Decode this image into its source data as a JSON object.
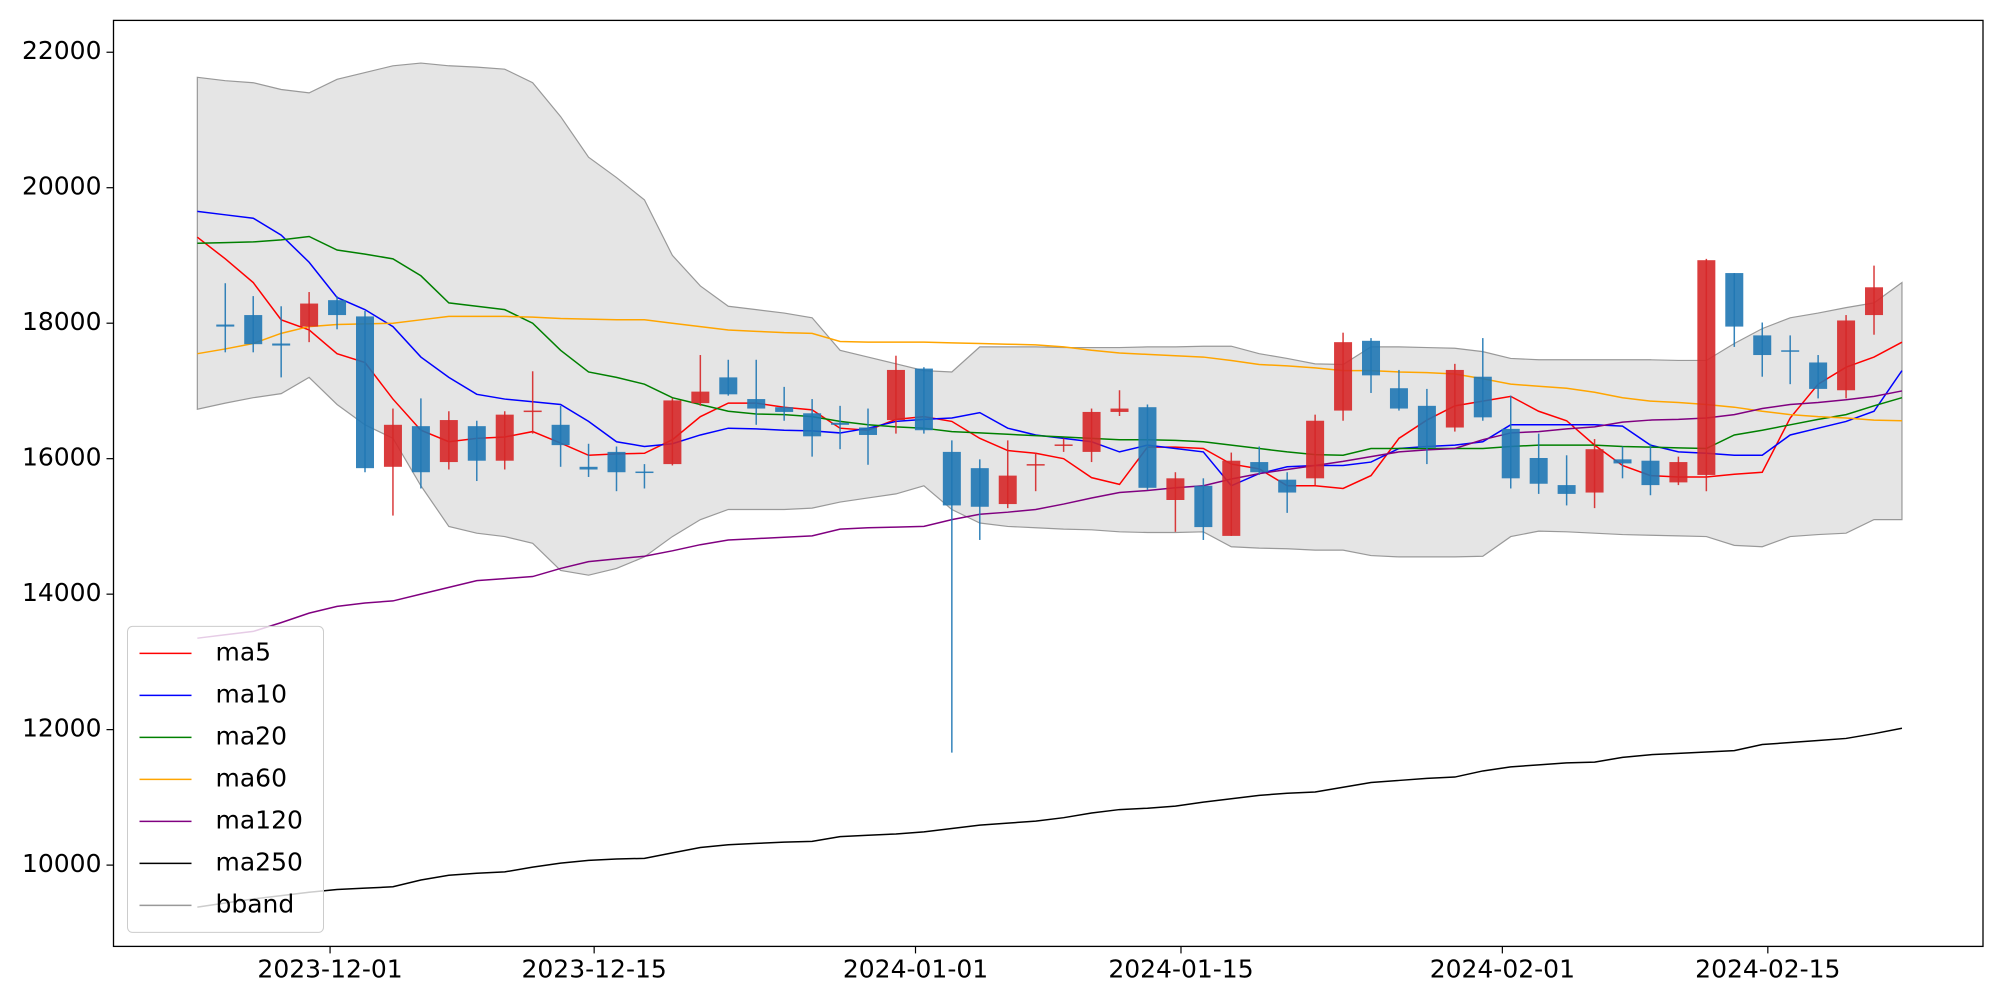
{
  "chart_data": {
    "type": "candlestick",
    "categories": [
      null,
      null,
      null,
      null,
      null,
      null,
      null,
      null,
      null,
      null,
      null,
      null,
      null,
      null,
      null,
      null,
      null,
      null,
      null,
      null,
      null,
      null,
      null,
      null,
      null,
      null,
      null,
      null,
      null,
      null,
      null,
      null,
      null,
      null,
      null,
      null,
      null,
      null,
      null,
      null,
      null,
      null,
      null,
      null,
      null,
      null,
      null,
      null,
      null,
      null,
      null,
      null,
      null,
      null,
      null,
      null,
      null,
      null,
      null,
      null,
      null,
      null
    ],
    "xlim": [
      -3.0,
      63.9
    ],
    "xticks": [
      {
        "value": 4.75,
        "label": "2023-12-01"
      },
      {
        "value": 14.2,
        "label": "2023-12-15"
      },
      {
        "value": 25.7,
        "label": "2024-01-01"
      },
      {
        "value": 35.2,
        "label": "2024-01-15"
      },
      {
        "value": 46.7,
        "label": "2024-02-01"
      },
      {
        "value": 56.2,
        "label": "2024-02-15"
      }
    ],
    "ylim": [
      8800,
      22470
    ],
    "yticks": [
      10000,
      12000,
      14000,
      16000,
      18000,
      20000,
      22000
    ],
    "legend": "lower left",
    "candles": {
      "up_color": "#d62728",
      "down_color": "#1f77b4",
      "open": [
        null,
        17980,
        18120,
        17700,
        17950,
        18340,
        18100,
        15880,
        16480,
        15950,
        16480,
        15970,
        16690,
        16500,
        15880,
        16100,
        15810,
        15920,
        16820,
        17200,
        16880,
        16760,
        16670,
        16530,
        16460,
        16570,
        17330,
        16100,
        15860,
        15330,
        15900,
        16200,
        16100,
        16690,
        16760,
        15390,
        15600,
        14860,
        15950,
        15690,
        15710,
        16710,
        17740,
        17040,
        16780,
        16460,
        17210,
        16440,
        16010,
        15610,
        15500,
        15990,
        15970,
        15650,
        15760,
        18740,
        17820,
        17600,
        17420,
        17010,
        18120,
        null
      ],
      "high": [
        null,
        18590,
        18400,
        18250,
        18460,
        18400,
        18180,
        16740,
        16890,
        16700,
        16560,
        16700,
        17290,
        16780,
        16220,
        16180,
        15920,
        16890,
        17530,
        17460,
        17460,
        17060,
        16880,
        16780,
        16740,
        17520,
        17350,
        16270,
        15990,
        16270,
        16090,
        16300,
        16740,
        17010,
        16800,
        15800,
        15710,
        16090,
        16180,
        15800,
        16650,
        17860,
        17780,
        17310,
        17030,
        17400,
        17780,
        16930,
        16370,
        16050,
        16290,
        16180,
        16220,
        16030,
        18950,
        18740,
        18010,
        17820,
        17530,
        18120,
        18850,
        null
      ],
      "low": [
        null,
        17570,
        17570,
        17200,
        17720,
        17910,
        15800,
        15160,
        15560,
        15840,
        15670,
        15840,
        16370,
        15880,
        15730,
        15520,
        15560,
        15900,
        16780,
        16930,
        16500,
        16560,
        16030,
        16140,
        15910,
        16370,
        16370,
        11660,
        14800,
        15270,
        15520,
        16100,
        15950,
        16630,
        15540,
        14920,
        14800,
        14860,
        15760,
        15200,
        15610,
        16560,
        16970,
        16710,
        15920,
        16400,
        16560,
        15560,
        15480,
        15310,
        15270,
        15710,
        15460,
        15610,
        15520,
        17650,
        17210,
        17100,
        16890,
        16890,
        17830,
        null
      ],
      "close": [
        null,
        17950,
        17690,
        17670,
        18290,
        18120,
        15860,
        16500,
        15800,
        16570,
        15970,
        16650,
        16710,
        16200,
        15840,
        15800,
        15790,
        16860,
        16990,
        16950,
        16740,
        16690,
        16330,
        16500,
        16350,
        17310,
        16420,
        15310,
        15290,
        15750,
        15920,
        16210,
        16690,
        16740,
        15570,
        15710,
        14990,
        15970,
        15800,
        15500,
        16560,
        17720,
        17230,
        16740,
        16160,
        17310,
        16610,
        15710,
        15630,
        15480,
        16140,
        15930,
        15610,
        15950,
        18930,
        17950,
        17530,
        17590,
        17030,
        18040,
        18530,
        null
      ]
    },
    "series": [
      {
        "name": "ma5",
        "color": "#ff0000",
        "values": [
          19270,
          18950,
          18600,
          18050,
          17900,
          17550,
          17420,
          16880,
          16420,
          16250,
          16300,
          16320,
          16400,
          16230,
          16050,
          16070,
          16080,
          16280,
          16620,
          16820,
          16820,
          16760,
          16720,
          16450,
          16420,
          16580,
          16620,
          16550,
          16300,
          16120,
          16080,
          16000,
          15720,
          15620,
          16170,
          16170,
          16150,
          15920,
          15850,
          15600,
          15600,
          15560,
          15750,
          16300,
          16570,
          16780,
          16850,
          16920,
          16700,
          16560,
          16200,
          15900,
          15750,
          15730,
          15730,
          15770,
          15800,
          16600,
          17100,
          17350,
          17500,
          17720
        ]
      },
      {
        "name": "ma10",
        "color": "#0000ff",
        "values": [
          19650,
          19600,
          19550,
          19300,
          18900,
          18380,
          18200,
          17950,
          17500,
          17200,
          16950,
          16880,
          16840,
          16800,
          16550,
          16250,
          16180,
          16220,
          16350,
          16450,
          16440,
          16420,
          16410,
          16380,
          16450,
          16550,
          16580,
          16600,
          16680,
          16450,
          16350,
          16300,
          16250,
          16100,
          16200,
          16150,
          16100,
          15600,
          15780,
          15880,
          15900,
          15900,
          15950,
          16150,
          16180,
          16200,
          16250,
          16500,
          16500,
          16500,
          16500,
          16480,
          16200,
          16100,
          16080,
          16050,
          16050,
          16350,
          16450,
          16550,
          16700,
          17300
        ]
      },
      {
        "name": "ma20",
        "color": "#008000",
        "values": [
          19180,
          19190,
          19200,
          19230,
          19280,
          19080,
          19020,
          18950,
          18700,
          18300,
          18250,
          18200,
          18000,
          17600,
          17280,
          17200,
          17100,
          16900,
          16800,
          16700,
          16660,
          16650,
          16620,
          16550,
          16500,
          16470,
          16450,
          16400,
          16380,
          16360,
          16340,
          16320,
          16300,
          16280,
          16280,
          16270,
          16250,
          16200,
          16150,
          16100,
          16060,
          16050,
          16150,
          16150,
          16150,
          16150,
          16150,
          16180,
          16200,
          16200,
          16200,
          16180,
          16170,
          16160,
          16150,
          16350,
          16420,
          16500,
          16580,
          16650,
          16780,
          16900
        ]
      },
      {
        "name": "ma60",
        "color": "#ffa500",
        "values": [
          17550,
          17620,
          17700,
          17850,
          17950,
          17980,
          17990,
          18000,
          18050,
          18100,
          18100,
          18100,
          18090,
          18070,
          18060,
          18050,
          18050,
          18000,
          17950,
          17900,
          17880,
          17860,
          17850,
          17730,
          17720,
          17720,
          17720,
          17710,
          17700,
          17690,
          17680,
          17650,
          17600,
          17560,
          17540,
          17520,
          17500,
          17450,
          17390,
          17370,
          17340,
          17300,
          17300,
          17280,
          17270,
          17250,
          17180,
          17100,
          17070,
          17040,
          16980,
          16900,
          16850,
          16830,
          16800,
          16760,
          16700,
          16650,
          16620,
          16600,
          16570,
          16560
        ]
      },
      {
        "name": "ma120",
        "color": "#800080",
        "values": [
          13350,
          13400,
          13450,
          13580,
          13720,
          13820,
          13870,
          13900,
          14000,
          14100,
          14200,
          14230,
          14260,
          14380,
          14480,
          14520,
          14560,
          14640,
          14730,
          14800,
          14820,
          14840,
          14860,
          14960,
          14980,
          14990,
          15000,
          15100,
          15180,
          15210,
          15250,
          15330,
          15420,
          15500,
          15530,
          15570,
          15600,
          15700,
          15780,
          15840,
          15900,
          15960,
          16030,
          16100,
          16130,
          16150,
          16280,
          16380,
          16400,
          16440,
          16470,
          16540,
          16570,
          16580,
          16600,
          16650,
          16740,
          16800,
          16830,
          16870,
          16920,
          17000
        ]
      },
      {
        "name": "ma250",
        "color": "#000000",
        "values": [
          9380,
          9440,
          9500,
          9550,
          9600,
          9640,
          9660,
          9680,
          9780,
          9850,
          9880,
          9900,
          9970,
          10030,
          10070,
          10090,
          10100,
          10180,
          10260,
          10300,
          10320,
          10340,
          10350,
          10420,
          10440,
          10460,
          10490,
          10540,
          10590,
          10620,
          10650,
          10700,
          10770,
          10820,
          10840,
          10870,
          10930,
          10980,
          11030,
          11060,
          11080,
          11150,
          11220,
          11250,
          11280,
          11300,
          11390,
          11450,
          11480,
          11510,
          11520,
          11590,
          11630,
          11650,
          11670,
          11690,
          11780,
          11810,
          11840,
          11870,
          11940,
          12020
        ]
      }
    ],
    "band": {
      "name": "bband",
      "color": "#999999",
      "fill": "#e5e5e5",
      "upper": [
        21630,
        21580,
        21550,
        21450,
        21400,
        21600,
        21700,
        21800,
        21840,
        21800,
        21780,
        21750,
        21550,
        21050,
        20450,
        20150,
        19820,
        19000,
        18550,
        18250,
        18200,
        18150,
        18080,
        17600,
        17500,
        17400,
        17300,
        17280,
        17650,
        17650,
        17650,
        17640,
        17640,
        17640,
        17650,
        17650,
        17660,
        17660,
        17550,
        17480,
        17400,
        17390,
        17650,
        17650,
        17640,
        17630,
        17580,
        17480,
        17460,
        17460,
        17460,
        17460,
        17460,
        17450,
        17450,
        17700,
        17920,
        18080,
        18150,
        18230,
        18300,
        18600
      ],
      "lower": [
        16730,
        16820,
        16900,
        16960,
        17200,
        16800,
        16500,
        16300,
        15600,
        15000,
        14900,
        14850,
        14750,
        14350,
        14280,
        14380,
        14550,
        14850,
        15100,
        15250,
        15250,
        15250,
        15270,
        15360,
        15420,
        15480,
        15600,
        15250,
        15050,
        15000,
        14980,
        14960,
        14950,
        14920,
        14910,
        14910,
        14920,
        14700,
        14680,
        14670,
        14650,
        14650,
        14570,
        14550,
        14550,
        14550,
        14560,
        14850,
        14930,
        14920,
        14900,
        14880,
        14870,
        14860,
        14850,
        14720,
        14700,
        14850,
        14880,
        14900,
        15100,
        15100
      ]
    }
  }
}
